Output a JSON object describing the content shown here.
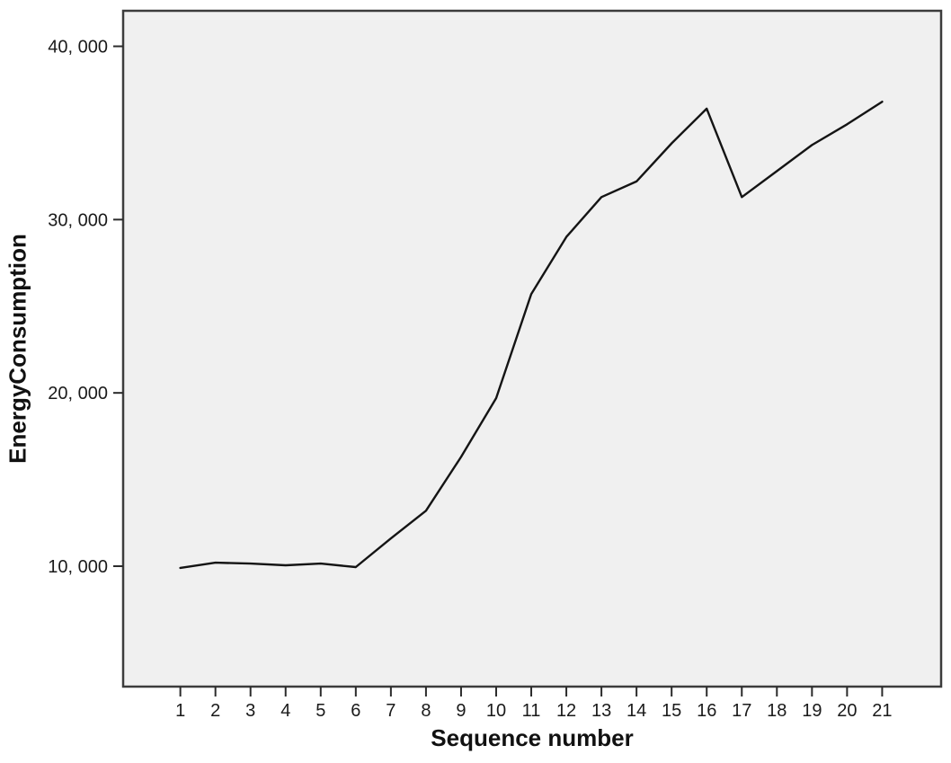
{
  "chart_data": {
    "type": "line",
    "title": "",
    "xlabel": "Sequence number",
    "ylabel": "EnergyConsumption",
    "x": [
      1,
      2,
      3,
      4,
      5,
      6,
      7,
      8,
      9,
      10,
      11,
      12,
      13,
      14,
      15,
      16,
      17,
      18,
      19,
      20,
      21
    ],
    "series": [
      {
        "name": "EnergyConsumption",
        "values": [
          9900,
          10200,
          10150,
          10050,
          10150,
          9950,
          11600,
          13200,
          16300,
          19700,
          25700,
          29000,
          31300,
          32200,
          34400,
          36400,
          31300,
          32800,
          34300,
          35500,
          36800
        ]
      }
    ],
    "x_tick_labels": [
      "1",
      "2",
      "3",
      "4",
      "5",
      "6",
      "7",
      "8",
      "9",
      "10",
      "11",
      "12",
      "13",
      "14",
      "15",
      "16",
      "17",
      "18",
      "19",
      "20",
      "21"
    ],
    "y_ticks": [
      {
        "value": 10000,
        "label": "10, 000"
      },
      {
        "value": 20000,
        "label": "20, 000"
      },
      {
        "value": 30000,
        "label": "30, 000"
      },
      {
        "value": 40000,
        "label": "40, 000"
      }
    ],
    "xlim": [
      -0.63,
      22.68
    ],
    "ylim": [
      3050,
      42050
    ],
    "grid": false,
    "legend_position": "none",
    "colors": {
      "line": "#141414",
      "plot_background": "#f0f0f0",
      "plot_border": "#3c3c3c",
      "tick": "#2b2b2b",
      "text": "#1a1a1a"
    }
  }
}
